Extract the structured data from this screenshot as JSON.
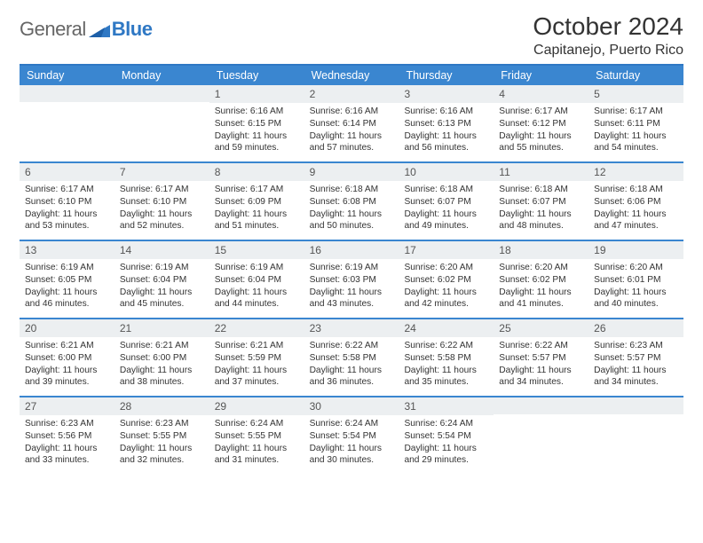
{
  "logo": {
    "textA": "General",
    "textB": "Blue"
  },
  "title": "October 2024",
  "location": "Capitanejo, Puerto Rico",
  "colors": {
    "header_bg": "#3a86d0",
    "header_text": "#ffffff",
    "divider": "#3a86d0",
    "daynum_bg": "#eceff1",
    "text": "#333333"
  },
  "dow": [
    "Sunday",
    "Monday",
    "Tuesday",
    "Wednesday",
    "Thursday",
    "Friday",
    "Saturday"
  ],
  "weeks": [
    [
      {
        "n": "",
        "rise": "",
        "set": "",
        "dl": ""
      },
      {
        "n": "",
        "rise": "",
        "set": "",
        "dl": ""
      },
      {
        "n": "1",
        "rise": "Sunrise: 6:16 AM",
        "set": "Sunset: 6:15 PM",
        "dl": "Daylight: 11 hours and 59 minutes."
      },
      {
        "n": "2",
        "rise": "Sunrise: 6:16 AM",
        "set": "Sunset: 6:14 PM",
        "dl": "Daylight: 11 hours and 57 minutes."
      },
      {
        "n": "3",
        "rise": "Sunrise: 6:16 AM",
        "set": "Sunset: 6:13 PM",
        "dl": "Daylight: 11 hours and 56 minutes."
      },
      {
        "n": "4",
        "rise": "Sunrise: 6:17 AM",
        "set": "Sunset: 6:12 PM",
        "dl": "Daylight: 11 hours and 55 minutes."
      },
      {
        "n": "5",
        "rise": "Sunrise: 6:17 AM",
        "set": "Sunset: 6:11 PM",
        "dl": "Daylight: 11 hours and 54 minutes."
      }
    ],
    [
      {
        "n": "6",
        "rise": "Sunrise: 6:17 AM",
        "set": "Sunset: 6:10 PM",
        "dl": "Daylight: 11 hours and 53 minutes."
      },
      {
        "n": "7",
        "rise": "Sunrise: 6:17 AM",
        "set": "Sunset: 6:10 PM",
        "dl": "Daylight: 11 hours and 52 minutes."
      },
      {
        "n": "8",
        "rise": "Sunrise: 6:17 AM",
        "set": "Sunset: 6:09 PM",
        "dl": "Daylight: 11 hours and 51 minutes."
      },
      {
        "n": "9",
        "rise": "Sunrise: 6:18 AM",
        "set": "Sunset: 6:08 PM",
        "dl": "Daylight: 11 hours and 50 minutes."
      },
      {
        "n": "10",
        "rise": "Sunrise: 6:18 AM",
        "set": "Sunset: 6:07 PM",
        "dl": "Daylight: 11 hours and 49 minutes."
      },
      {
        "n": "11",
        "rise": "Sunrise: 6:18 AM",
        "set": "Sunset: 6:07 PM",
        "dl": "Daylight: 11 hours and 48 minutes."
      },
      {
        "n": "12",
        "rise": "Sunrise: 6:18 AM",
        "set": "Sunset: 6:06 PM",
        "dl": "Daylight: 11 hours and 47 minutes."
      }
    ],
    [
      {
        "n": "13",
        "rise": "Sunrise: 6:19 AM",
        "set": "Sunset: 6:05 PM",
        "dl": "Daylight: 11 hours and 46 minutes."
      },
      {
        "n": "14",
        "rise": "Sunrise: 6:19 AM",
        "set": "Sunset: 6:04 PM",
        "dl": "Daylight: 11 hours and 45 minutes."
      },
      {
        "n": "15",
        "rise": "Sunrise: 6:19 AM",
        "set": "Sunset: 6:04 PM",
        "dl": "Daylight: 11 hours and 44 minutes."
      },
      {
        "n": "16",
        "rise": "Sunrise: 6:19 AM",
        "set": "Sunset: 6:03 PM",
        "dl": "Daylight: 11 hours and 43 minutes."
      },
      {
        "n": "17",
        "rise": "Sunrise: 6:20 AM",
        "set": "Sunset: 6:02 PM",
        "dl": "Daylight: 11 hours and 42 minutes."
      },
      {
        "n": "18",
        "rise": "Sunrise: 6:20 AM",
        "set": "Sunset: 6:02 PM",
        "dl": "Daylight: 11 hours and 41 minutes."
      },
      {
        "n": "19",
        "rise": "Sunrise: 6:20 AM",
        "set": "Sunset: 6:01 PM",
        "dl": "Daylight: 11 hours and 40 minutes."
      }
    ],
    [
      {
        "n": "20",
        "rise": "Sunrise: 6:21 AM",
        "set": "Sunset: 6:00 PM",
        "dl": "Daylight: 11 hours and 39 minutes."
      },
      {
        "n": "21",
        "rise": "Sunrise: 6:21 AM",
        "set": "Sunset: 6:00 PM",
        "dl": "Daylight: 11 hours and 38 minutes."
      },
      {
        "n": "22",
        "rise": "Sunrise: 6:21 AM",
        "set": "Sunset: 5:59 PM",
        "dl": "Daylight: 11 hours and 37 minutes."
      },
      {
        "n": "23",
        "rise": "Sunrise: 6:22 AM",
        "set": "Sunset: 5:58 PM",
        "dl": "Daylight: 11 hours and 36 minutes."
      },
      {
        "n": "24",
        "rise": "Sunrise: 6:22 AM",
        "set": "Sunset: 5:58 PM",
        "dl": "Daylight: 11 hours and 35 minutes."
      },
      {
        "n": "25",
        "rise": "Sunrise: 6:22 AM",
        "set": "Sunset: 5:57 PM",
        "dl": "Daylight: 11 hours and 34 minutes."
      },
      {
        "n": "26",
        "rise": "Sunrise: 6:23 AM",
        "set": "Sunset: 5:57 PM",
        "dl": "Daylight: 11 hours and 34 minutes."
      }
    ],
    [
      {
        "n": "27",
        "rise": "Sunrise: 6:23 AM",
        "set": "Sunset: 5:56 PM",
        "dl": "Daylight: 11 hours and 33 minutes."
      },
      {
        "n": "28",
        "rise": "Sunrise: 6:23 AM",
        "set": "Sunset: 5:55 PM",
        "dl": "Daylight: 11 hours and 32 minutes."
      },
      {
        "n": "29",
        "rise": "Sunrise: 6:24 AM",
        "set": "Sunset: 5:55 PM",
        "dl": "Daylight: 11 hours and 31 minutes."
      },
      {
        "n": "30",
        "rise": "Sunrise: 6:24 AM",
        "set": "Sunset: 5:54 PM",
        "dl": "Daylight: 11 hours and 30 minutes."
      },
      {
        "n": "31",
        "rise": "Sunrise: 6:24 AM",
        "set": "Sunset: 5:54 PM",
        "dl": "Daylight: 11 hours and 29 minutes."
      },
      {
        "n": "",
        "rise": "",
        "set": "",
        "dl": ""
      },
      {
        "n": "",
        "rise": "",
        "set": "",
        "dl": ""
      }
    ]
  ]
}
